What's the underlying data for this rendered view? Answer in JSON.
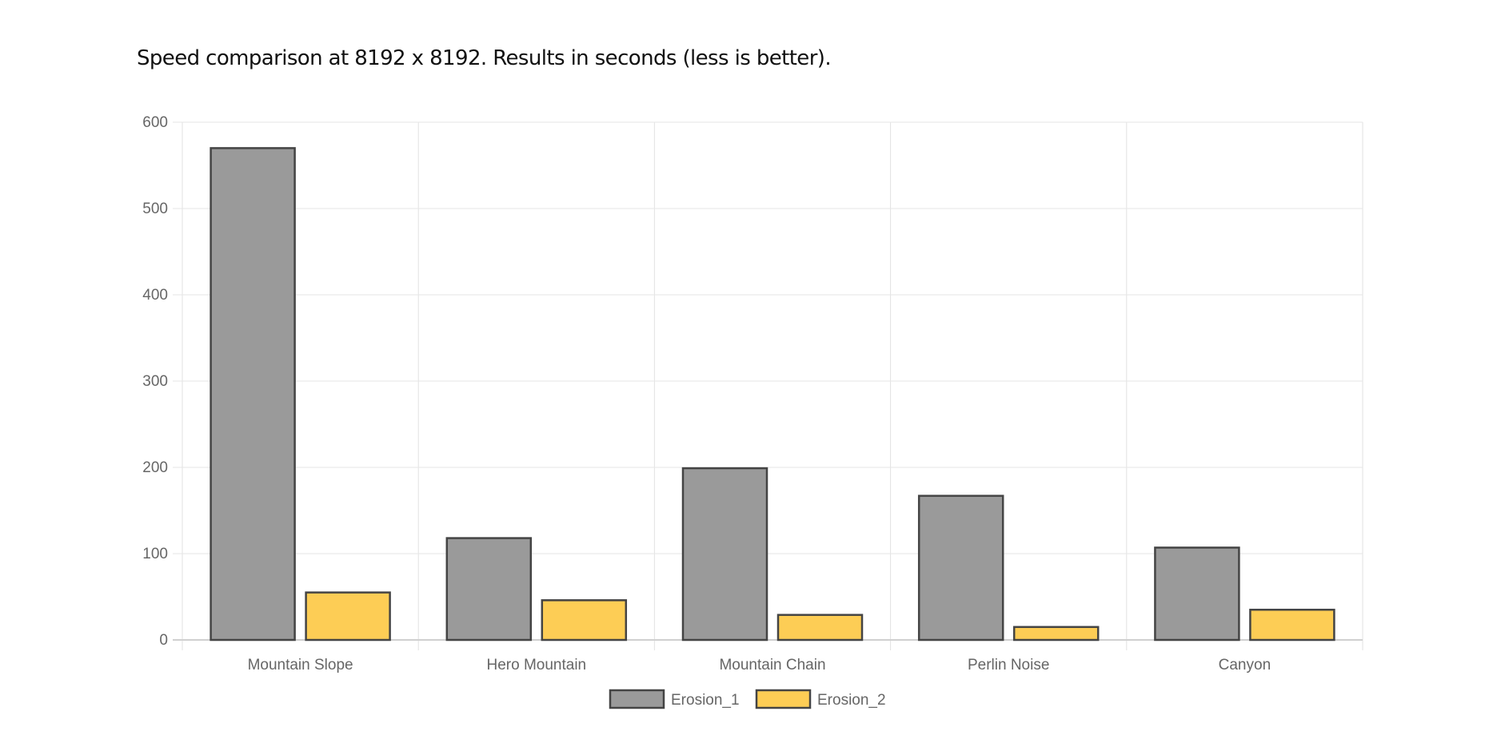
{
  "chart_data": {
    "type": "bar",
    "title": "Speed comparison at 8192 x 8192. Results in seconds (less is better).",
    "categories": [
      "Mountain Slope",
      "Hero Mountain",
      "Mountain Chain",
      "Perlin Noise",
      "Canyon"
    ],
    "series": [
      {
        "name": "Erosion_1",
        "values": [
          570,
          118,
          199,
          167,
          107
        ],
        "color": "#9a9a9a"
      },
      {
        "name": "Erosion_2",
        "values": [
          55,
          46,
          29,
          15,
          35
        ],
        "color": "#fdcd55"
      }
    ],
    "border_color": "#444444",
    "xlabel": "",
    "ylabel": "",
    "ylim": [
      0,
      600
    ],
    "yticks": [
      0,
      100,
      200,
      300,
      400,
      500,
      600
    ],
    "grid": true,
    "legend": "bottom"
  }
}
